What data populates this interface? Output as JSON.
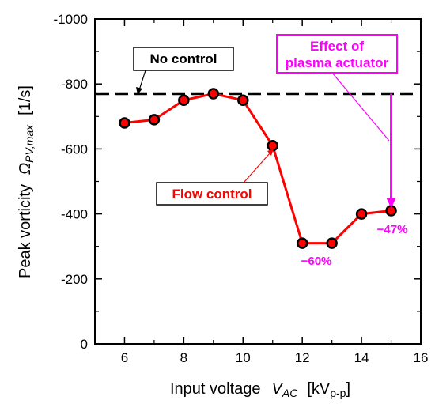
{
  "chart_data": {
    "type": "line",
    "xlabel": {
      "main": "Input voltage",
      "var": "V",
      "var_sub": "AC",
      "unit_pre": "[kV",
      "unit_sub": "p-p",
      "unit_post": "]"
    },
    "ylabel": {
      "main": "Peak vorticity",
      "var": "Ω",
      "var_sub": "PV,max",
      "unit": "[1/s]"
    },
    "xlim": [
      5,
      16
    ],
    "ylim": [
      0,
      -1000
    ],
    "x_ticks": [
      6,
      8,
      10,
      12,
      14,
      16
    ],
    "x_tick_labels": [
      "6",
      "8",
      "10",
      "12",
      "14",
      "16"
    ],
    "y_ticks": [
      0,
      -200,
      -400,
      -600,
      -800,
      -1000
    ],
    "y_tick_labels": [
      "0",
      "-200",
      "-400",
      "-600",
      "-800",
      "-1000"
    ],
    "series": [
      {
        "name": "Flow control",
        "color": "#ff0000",
        "marker_color": "#000000",
        "x": [
          6,
          7,
          8,
          9,
          10,
          11,
          12,
          13,
          14,
          15
        ],
        "y": [
          -680,
          -690,
          -750,
          -770,
          -750,
          -610,
          -310,
          -310,
          -400,
          -410
        ]
      }
    ],
    "reference_line": {
      "name": "No control",
      "y": -770,
      "style": "dashed",
      "color": "#000000"
    },
    "annotations": {
      "no_control_label": "No control",
      "flow_control_label": "Flow control",
      "effect_label_line1": "Effect of",
      "effect_label_line2": "plasma actuator",
      "pct_60": "−60%",
      "pct_47": "−47%",
      "accent_color": "#ff00ff"
    },
    "grid": false
  }
}
